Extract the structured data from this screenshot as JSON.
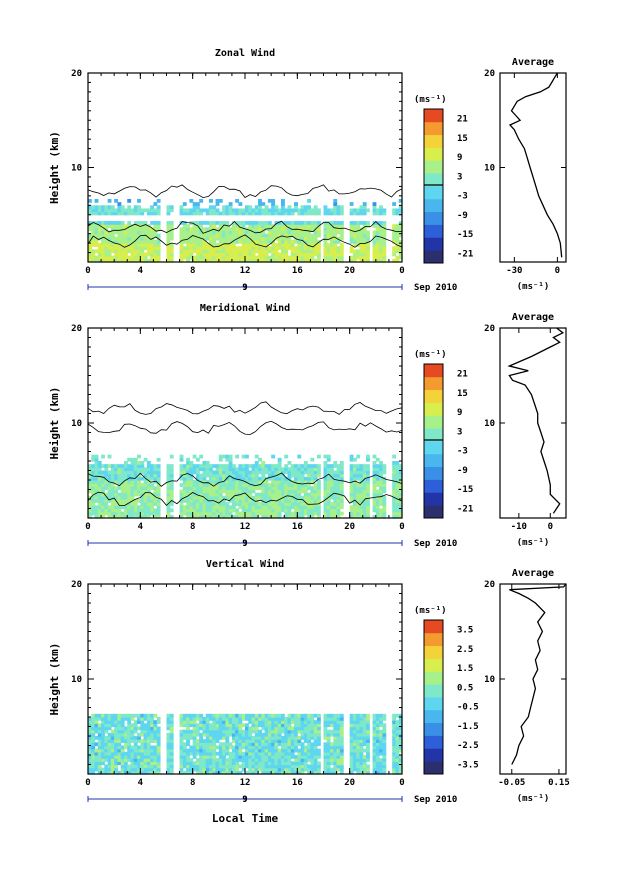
{
  "figure": {
    "xlabel": "Local Time",
    "date_label": "Sep 2010",
    "day_label": "9"
  },
  "chart_data": [
    {
      "type": "heatmap",
      "title": "Zonal Wind",
      "ylabel": "Height (km)",
      "ylim": [
        0,
        20
      ],
      "yticks": [
        "10",
        "20"
      ],
      "xlim": [
        0,
        24
      ],
      "xticks": [
        "0",
        "4",
        "8",
        "12",
        "16",
        "20",
        "0"
      ],
      "colorbar": {
        "unit": "(ms⁻¹)",
        "ticks": [
          "21",
          "15",
          "9",
          "3",
          "-3",
          "-9",
          "-15",
          "-21"
        ],
        "range": [
          -24,
          24
        ]
      },
      "gaps_hours": [
        [
          5.4,
          5.9
        ],
        [
          6.4,
          7.0
        ],
        [
          17.7,
          18.0
        ],
        [
          19.6,
          20.1
        ],
        [
          21.5,
          21.7
        ],
        [
          22.8,
          23.2
        ]
      ],
      "profile": {
        "title": "Average",
        "xlabel": "(ms⁻¹)",
        "xlim": [
          -40,
          6
        ],
        "xticks": [
          "-30",
          "0"
        ],
        "yticks": [
          "10",
          "20"
        ],
        "heights_km": [
          0.5,
          2,
          3,
          4,
          5,
          6,
          7,
          8,
          9,
          10,
          11,
          12,
          13,
          14,
          14.5,
          15,
          15.5,
          16,
          17,
          17.5,
          18,
          18.5,
          19,
          19.5,
          20
        ],
        "values": [
          3,
          2,
          0,
          -3,
          -7,
          -10,
          -13,
          -15,
          -17,
          -19,
          -21,
          -23,
          -27,
          -30,
          -33,
          -26,
          -29,
          -32,
          -28,
          -22,
          -12,
          -6,
          -4,
          -2,
          0
        ]
      }
    },
    {
      "type": "heatmap",
      "title": "Meridional Wind",
      "ylabel": "Height (km)",
      "ylim": [
        0,
        20
      ],
      "yticks": [
        "10",
        "20"
      ],
      "xlim": [
        0,
        24
      ],
      "xticks": [
        "0",
        "4",
        "8",
        "12",
        "16",
        "20",
        "0"
      ],
      "colorbar": {
        "unit": "(ms⁻¹)",
        "ticks": [
          "21",
          "15",
          "9",
          "3",
          "-3",
          "-9",
          "-15",
          "-21"
        ],
        "range": [
          -24,
          24
        ]
      },
      "gaps_hours": [
        [
          5.4,
          5.9
        ],
        [
          6.4,
          7.0
        ],
        [
          17.7,
          18.0
        ],
        [
          19.6,
          20.1
        ],
        [
          21.5,
          21.7
        ],
        [
          22.8,
          23.2
        ]
      ],
      "profile": {
        "title": "Average",
        "xlabel": "(ms⁻¹)",
        "xlim": [
          -16,
          5
        ],
        "xticks": [
          "-10",
          "0"
        ],
        "yticks": [
          "10",
          "20"
        ],
        "heights_km": [
          0.5,
          1.5,
          2.5,
          3.5,
          5,
          6,
          7,
          8,
          9,
          10,
          11,
          12,
          13,
          14,
          14.5,
          15,
          15.5,
          16,
          17,
          18,
          18.5,
          19,
          19.5,
          20
        ],
        "values": [
          1,
          3,
          0,
          0,
          -1,
          -2,
          -3,
          -2,
          -3,
          -4,
          -4,
          -5,
          -6,
          -8,
          -12,
          -13,
          -7,
          -13,
          -6,
          0,
          3,
          1,
          4,
          2
        ]
      }
    },
    {
      "type": "heatmap",
      "title": "Vertical Wind",
      "ylabel": "Height (km)",
      "ylim": [
        0,
        20
      ],
      "yticks": [
        "10",
        "20"
      ],
      "xlim": [
        0,
        24
      ],
      "xticks": [
        "0",
        "4",
        "8",
        "12",
        "16",
        "20",
        "0"
      ],
      "colorbar": {
        "unit": "(ms⁻¹)",
        "ticks": [
          "3.5",
          "2.5",
          "1.5",
          "0.5",
          "-0.5",
          "-1.5",
          "-2.5",
          "-3.5"
        ],
        "range": [
          -4,
          4
        ]
      },
      "gaps_hours": [
        [
          5.4,
          5.9
        ],
        [
          6.4,
          7.0
        ],
        [
          17.7,
          18.0
        ],
        [
          19.6,
          20.1
        ],
        [
          21.5,
          21.7
        ],
        [
          22.8,
          23.2
        ]
      ],
      "profile": {
        "title": "Average",
        "xlabel": "(ms⁻¹)",
        "xlim": [
          -0.1,
          0.18
        ],
        "xticks": [
          "-0.05",
          "0.15"
        ],
        "yticks": [
          "10",
          "20"
        ],
        "heights_km": [
          1,
          2,
          3,
          4,
          5,
          6,
          7,
          8,
          9,
          10,
          11,
          12,
          13,
          14,
          15,
          16,
          17,
          18,
          18.5,
          19,
          19.4,
          19.7,
          20
        ],
        "values": [
          -0.05,
          -0.03,
          -0.02,
          0.0,
          -0.01,
          0.02,
          0.03,
          0.04,
          0.05,
          0.04,
          0.06,
          0.05,
          0.07,
          0.06,
          0.08,
          0.06,
          0.09,
          0.05,
          0.02,
          -0.02,
          -0.06,
          0.17,
          0.18
        ]
      }
    }
  ]
}
